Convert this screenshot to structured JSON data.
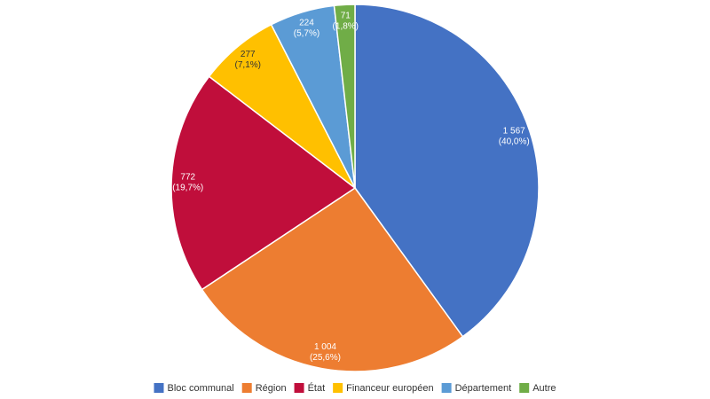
{
  "chart_data": {
    "type": "pie",
    "categories": [
      "Bloc communal",
      "Région",
      "État",
      "Financeur européen",
      "Département",
      "Autre"
    ],
    "values": [
      1567,
      1004,
      772,
      277,
      224,
      71
    ],
    "value_labels": [
      "1 567",
      "1 004",
      "772",
      "277",
      "224",
      "71"
    ],
    "share_labels": [
      "(40,0%)",
      "(25,6%)",
      "(19,7%)",
      "(7,1%)",
      "(5,7%)",
      "(1,8%)"
    ],
    "colors": [
      "#4472c4",
      "#ed7d31",
      "#c00e3b",
      "#ffc000",
      "#5b9bd5",
      "#70ad47"
    ],
    "legend": "bottom"
  }
}
